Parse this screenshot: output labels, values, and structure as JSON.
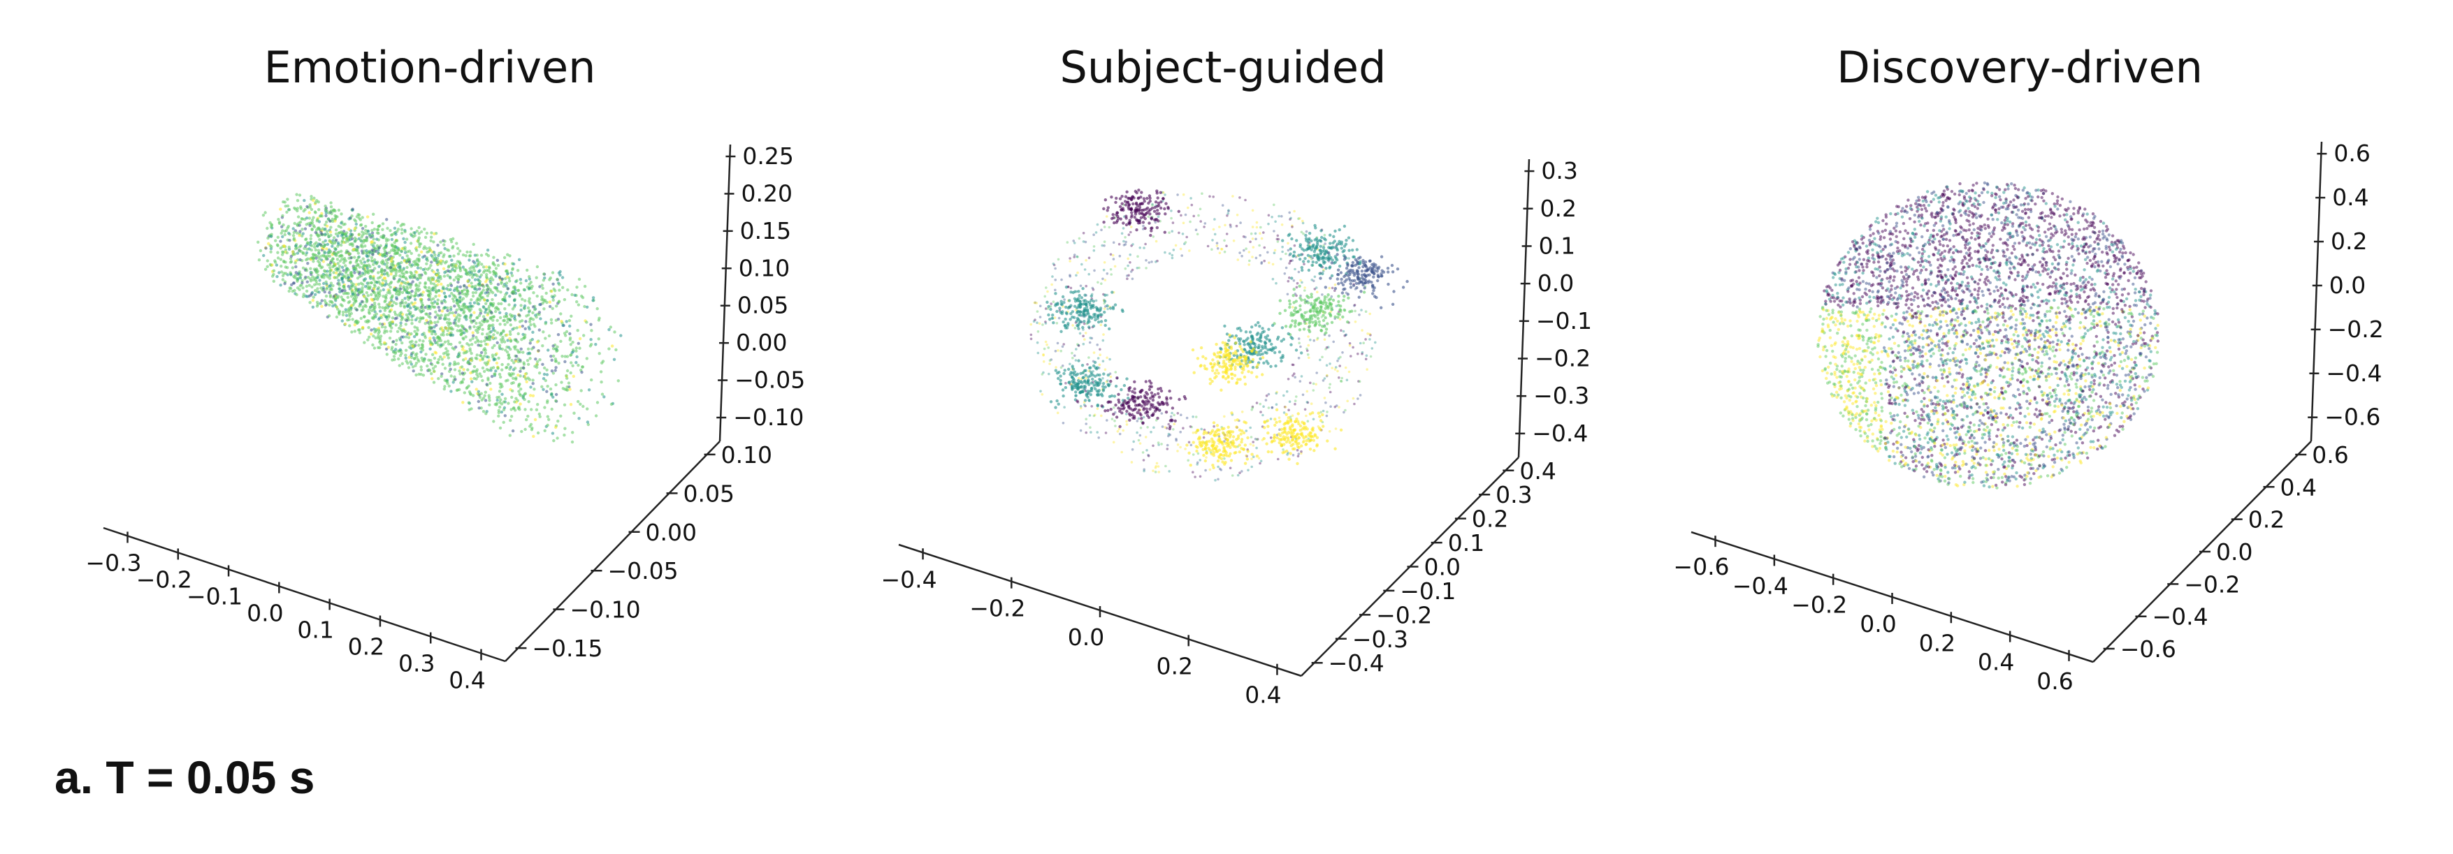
{
  "caption": "a. T = 0.05 s",
  "colors": {
    "viridis": [
      "#440154",
      "#3b528b",
      "#21918c",
      "#5ec962",
      "#fde725"
    ]
  },
  "chart_data": [
    {
      "type": "scatter",
      "projection": "3d",
      "title": "Emotion-driven",
      "color_map": "viridis",
      "cloud": "dense cone-shaped cloud, mostly green",
      "x_ticks": [
        "−0.3",
        "−0.2",
        "−0.1",
        "0.0",
        "0.1",
        "0.2",
        "0.3",
        "0.4"
      ],
      "y_ticks": [
        "−0.15",
        "−0.10",
        "−0.05",
        "0.00",
        "0.05",
        "0.10"
      ],
      "z_ticks": [
        "−0.10",
        "−0.05",
        "0.00",
        "0.05",
        "0.10",
        "0.15",
        "0.20",
        "0.25"
      ],
      "xlim": [
        -0.35,
        0.45
      ],
      "ylim": [
        -0.16,
        0.13
      ],
      "zlim": [
        -0.12,
        0.27
      ]
    },
    {
      "type": "scatter",
      "projection": "3d",
      "title": "Subject-guided",
      "color_map": "viridis",
      "cloud": "sparse shell with distinct colored clusters",
      "x_ticks": [
        "−0.4",
        "−0.2",
        "0.0",
        "0.2",
        "0.4"
      ],
      "y_ticks": [
        "−0.4",
        "−0.3",
        "−0.2",
        "−0.1",
        "0.0",
        "0.1",
        "0.2",
        "0.3",
        "0.4"
      ],
      "z_ticks": [
        "−0.4",
        "−0.3",
        "−0.2",
        "−0.1",
        "0.0",
        "0.1",
        "0.2",
        "0.3"
      ],
      "xlim": [
        -0.5,
        0.5
      ],
      "ylim": [
        -0.45,
        0.45
      ],
      "zlim": [
        -0.45,
        0.38
      ]
    },
    {
      "type": "scatter",
      "projection": "3d",
      "title": "Discovery-driven",
      "color_map": "viridis",
      "cloud": "dense sphere of mixed colors",
      "x_ticks": [
        "−0.6",
        "−0.4",
        "−0.2",
        "0.0",
        "0.2",
        "0.4",
        "0.6"
      ],
      "y_ticks": [
        "−0.6",
        "−0.4",
        "−0.2",
        "0.0",
        "0.2",
        "0.4",
        "0.6"
      ],
      "z_ticks": [
        "−0.6",
        "−0.4",
        "−0.2",
        "0.0",
        "0.2",
        "0.4",
        "0.6"
      ],
      "xlim": [
        -0.7,
        0.7
      ],
      "ylim": [
        -0.7,
        0.7
      ],
      "zlim": [
        -0.7,
        0.75
      ]
    }
  ]
}
